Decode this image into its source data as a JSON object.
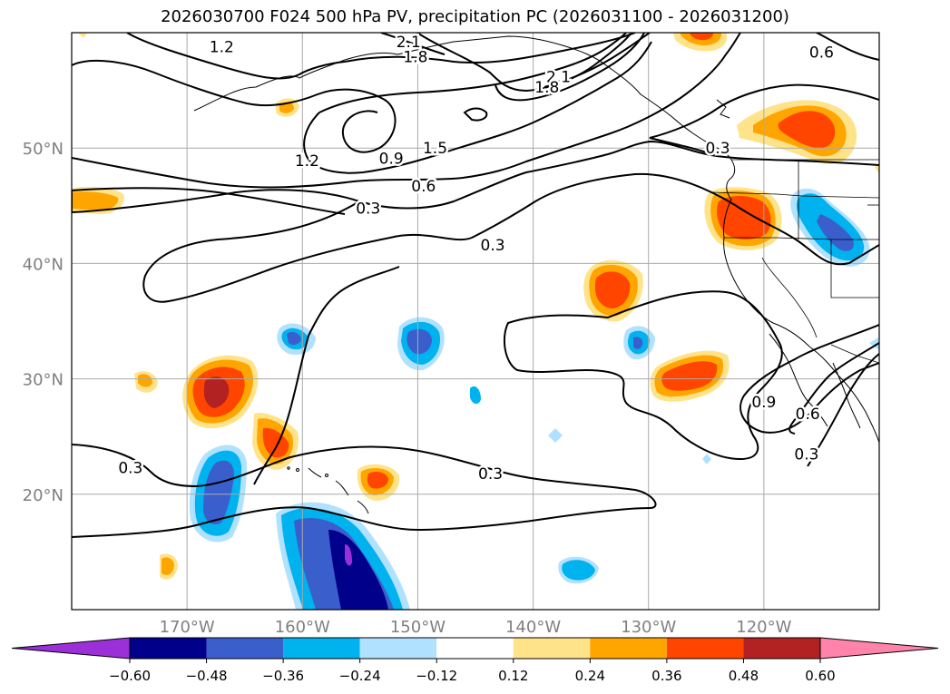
{
  "title": "2026030700 F024 500 hPa PV, precipitation PC (2026031100 - 2026031200)",
  "map": {
    "lon_range": [
      -180,
      -110
    ],
    "lat_range": [
      10,
      60
    ],
    "lat_labels": [
      "50°N",
      "40°N",
      "30°N",
      "20°N"
    ],
    "lon_labels": [
      "170°W",
      "160°W",
      "150°W",
      "140°W",
      "130°W",
      "120°W"
    ],
    "lat_ticks": [
      50,
      40,
      30,
      20
    ],
    "lon_ticks": [
      -170,
      -160,
      -150,
      -140,
      -130,
      -120
    ],
    "contour_labels": [
      {
        "text": "1.2",
        "lon": -167.0,
        "lat": 58.8
      },
      {
        "text": "2.1",
        "lon": -150.8,
        "lat": 59.2
      },
      {
        "text": "1.8",
        "lon": -150.2,
        "lat": 57.9
      },
      {
        "text": "2.1",
        "lon": -137.8,
        "lat": 56.2
      },
      {
        "text": "1.8",
        "lon": -138.8,
        "lat": 55.3
      },
      {
        "text": "1.5",
        "lon": -148.5,
        "lat": 50.0
      },
      {
        "text": "1.2",
        "lon": -159.6,
        "lat": 48.9
      },
      {
        "text": "0.9",
        "lon": -152.3,
        "lat": 49.1
      },
      {
        "text": "0.6",
        "lon": -149.5,
        "lat": 46.7
      },
      {
        "text": "0.3",
        "lon": -154.3,
        "lat": 44.8
      },
      {
        "text": "0.3",
        "lon": -143.5,
        "lat": 41.6
      },
      {
        "text": "0.6",
        "lon": -115.0,
        "lat": 58.3
      },
      {
        "text": "0.3",
        "lon": -124.0,
        "lat": 50.0
      },
      {
        "text": "0.9",
        "lon": -120.0,
        "lat": 28.0
      },
      {
        "text": "0.6",
        "lon": -116.2,
        "lat": 27.0
      },
      {
        "text": "0.3",
        "lon": -116.3,
        "lat": 23.5
      },
      {
        "text": "0.3",
        "lon": -174.9,
        "lat": 22.3
      },
      {
        "text": "0.3",
        "lon": -143.7,
        "lat": 21.8
      }
    ]
  },
  "colorbar": {
    "ticks": [
      "−0.60",
      "−0.48",
      "−0.36",
      "−0.24",
      "−0.12",
      "0.12",
      "0.24",
      "0.36",
      "0.48",
      "0.60"
    ],
    "colors": [
      "#9b30d9",
      "#00008b",
      "#3a5fcd",
      "#00b2ee",
      "#b0e2ff",
      "#ffffff",
      "#ffe38a",
      "#ffa500",
      "#ff4500",
      "#b22222",
      "#ff83aa"
    ]
  },
  "chart_data": {
    "type": "contour_map",
    "title": "2026030700 F024 500 hPa PV, precipitation PC (2026031100 - 2026031200)",
    "variables": [
      "500 hPa PV (contours, PVU)",
      "precipitation PC (shaded)"
    ],
    "contour_levels": [
      0.3,
      0.6,
      0.9,
      1.2,
      1.5,
      1.8,
      2.1
    ],
    "shading_levels": [
      -0.6,
      -0.48,
      -0.36,
      -0.24,
      -0.12,
      0.12,
      0.24,
      0.36,
      0.48,
      0.6
    ],
    "xlim": [
      -180,
      -110
    ],
    "ylim": [
      10,
      60
    ],
    "precip_anomalies": [
      {
        "name": "nw-pacific-coast-positive",
        "lon": -122.9,
        "lat": 46.8,
        "peak": 0.48
      },
      {
        "name": "ne-pacific-north-positive",
        "lon": -124.5,
        "lat": 58.6,
        "peak": 0.36
      },
      {
        "name": "western-canada-positive",
        "lon": -116.0,
        "lat": 51.5,
        "peak": 0.48
      },
      {
        "name": "oregon-positive",
        "lon": -121.5,
        "lat": 43.3,
        "peak": 0.48
      },
      {
        "name": "idaho-negative",
        "lon": -114.0,
        "lat": 43.5,
        "peak": -0.36
      },
      {
        "name": "dateline-west-positive",
        "lon": -178.5,
        "lat": 45.7,
        "peak": 0.24
      },
      {
        "name": "subtropical-positive-1",
        "lon": -167.3,
        "lat": 28.9,
        "peak": 0.48
      },
      {
        "name": "subtropical-positive-2",
        "lon": -161.0,
        "lat": 24.4,
        "peak": 0.36
      },
      {
        "name": "hawaii-north-negative",
        "lon": -150.0,
        "lat": 33.0,
        "peak": -0.36
      },
      {
        "name": "hawaii-south-negative",
        "lon": -154.5,
        "lat": 14.5,
        "peak": -0.6
      },
      {
        "name": "west-hawaii-negative",
        "lon": -166.5,
        "lat": 19.5,
        "peak": -0.36
      },
      {
        "name": "central-pacific-positive",
        "lon": -134.0,
        "lat": 37.5,
        "peak": 0.36
      },
      {
        "name": "east-pacific-positive",
        "lon": -126.5,
        "lat": 29.8,
        "peak": 0.36
      },
      {
        "name": "east-pacific-negative",
        "lon": -130.5,
        "lat": 32.5,
        "peak": -0.36
      },
      {
        "name": "hawaii-positive",
        "lon": -152.0,
        "lat": 21.0,
        "peak": 0.36
      },
      {
        "name": "tropical-negative",
        "lon": -136.5,
        "lat": 13.4,
        "peak": -0.24
      }
    ]
  }
}
